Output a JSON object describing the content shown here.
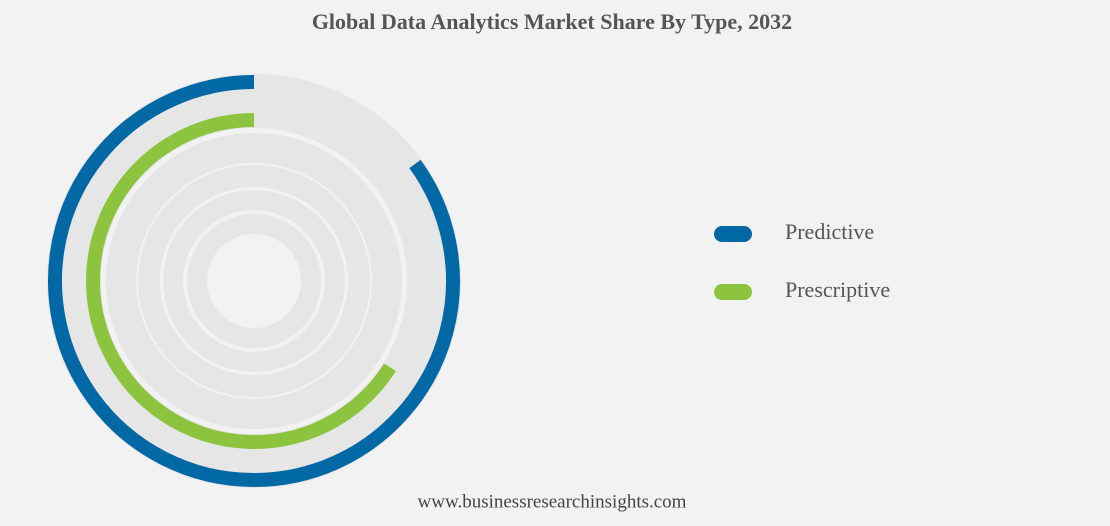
{
  "chart_data": {
    "type": "radial-bar",
    "title": "Global Data Analytics Market Share By Type, 2032",
    "source": "www.businessresearchinsights.com",
    "rlim": [
      0,
      100
    ],
    "series": [
      {
        "name": "Predictive",
        "color": "#0068a5",
        "values": [
          85
        ]
      },
      {
        "name": "Prescriptive",
        "color": "#8cc43f",
        "values": [
          66
        ]
      }
    ],
    "legend": "right"
  }
}
